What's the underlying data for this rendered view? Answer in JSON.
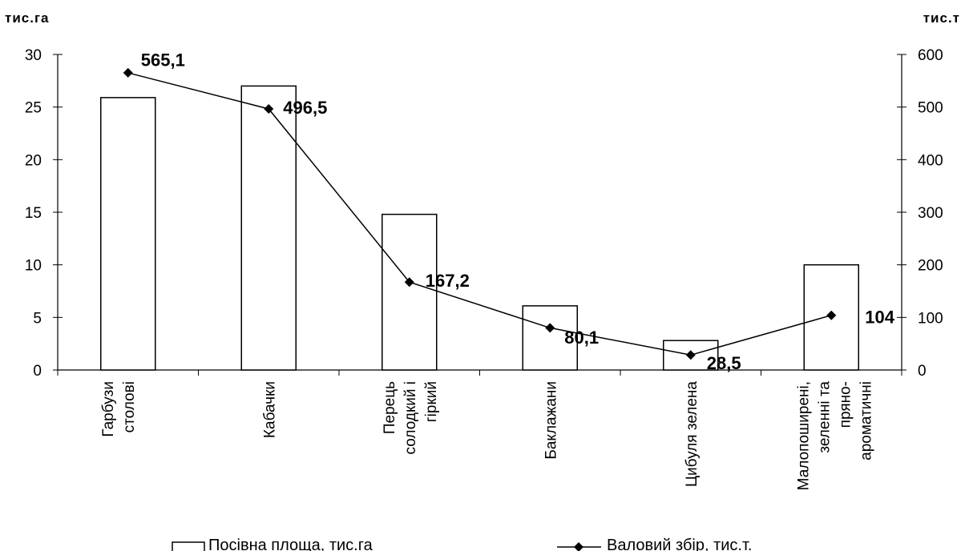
{
  "chart_data": {
    "type": "bar+line",
    "categories": [
      [
        "Гарбузи",
        "столові"
      ],
      [
        "Кабачки"
      ],
      [
        "Перець",
        "солодкий і",
        "гіркий"
      ],
      [
        "Баклажани"
      ],
      [
        "Цибуля зелена"
      ],
      [
        "Малопоширені,",
        "зеленні та",
        "пряно-",
        "ароматичні"
      ]
    ],
    "series": [
      {
        "name": "Посівна площа, тис.га",
        "kind": "bar",
        "axis": "left",
        "values": [
          25.9,
          27.0,
          14.8,
          6.1,
          2.8,
          10.0
        ]
      },
      {
        "name": "Валовий збір, тис.т.",
        "kind": "line",
        "axis": "right",
        "values": [
          565.1,
          496.5,
          167.2,
          80.1,
          28.5,
          104
        ],
        "data_labels": [
          "565,1",
          "496,5",
          "167,2",
          "80,1",
          "28,5",
          "104"
        ]
      }
    ],
    "y_left": {
      "unit": "тис.га",
      "ylim": [
        0,
        30
      ],
      "ticks": [
        "0",
        "5",
        "10",
        "15",
        "20",
        "25",
        "30"
      ]
    },
    "y_right": {
      "unit": "тис.т",
      "ylim": [
        0,
        600
      ],
      "ticks": [
        "0",
        "100",
        "200",
        "300",
        "400",
        "500",
        "600"
      ]
    },
    "grid": false,
    "legend_position": "bottom",
    "colors": {
      "bar_fill": "#ffffff",
      "bar_stroke": "#000000",
      "line": "#000000",
      "marker": "#000000"
    }
  }
}
